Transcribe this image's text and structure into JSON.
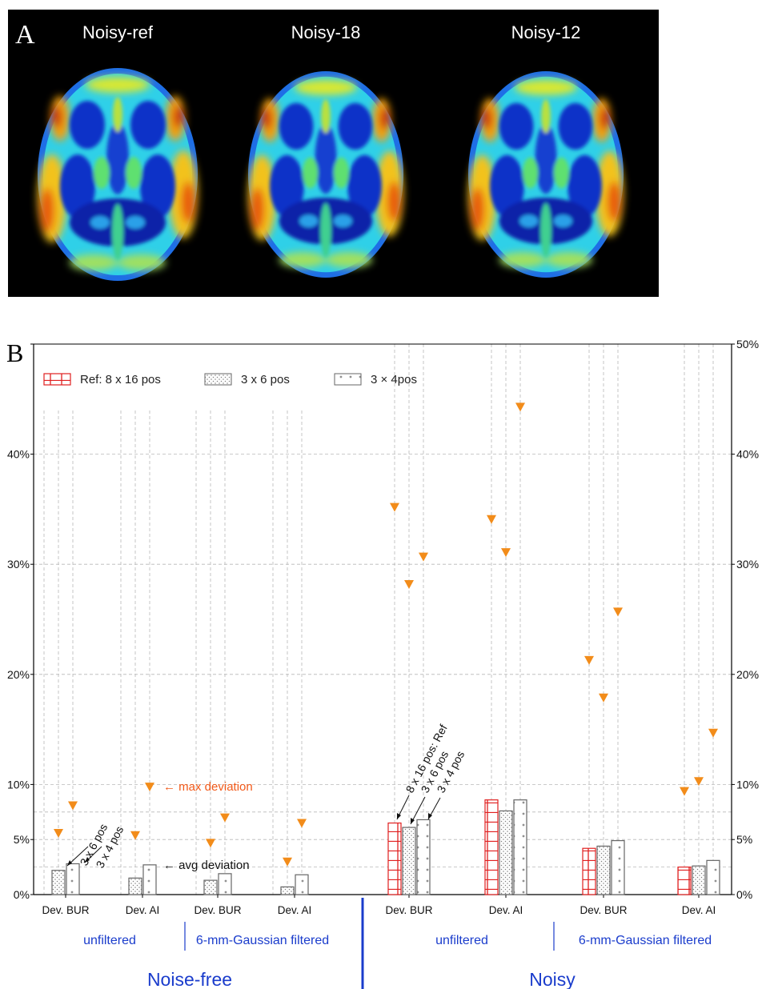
{
  "panel_a": {
    "letter": "A",
    "images": [
      {
        "title": "Noisy-ref"
      },
      {
        "title": "Noisy-18"
      },
      {
        "title": "Noisy-12"
      }
    ]
  },
  "panel_b": {
    "letter": "B",
    "legend": {
      "ref": "Ref: 8 x 16 pos",
      "s36": "3 x 6 pos",
      "s34": "3 × 4pos"
    },
    "annotations": {
      "max_deviation": "← max deviation",
      "avg_deviation": "← avg deviation",
      "nf_36": "3 x 6 pos",
      "nf_34": "3 x 4 pos",
      "n_ref": "8 x 16 pos: Ref",
      "n_36": "3 x 6 pos",
      "n_34": "3 x 4 pos"
    },
    "groups": {
      "nf_unfiltered": "unfiltered",
      "nf_filtered": "6-mm-Gaussian filtered",
      "n_unfiltered": "unfiltered",
      "n_filtered": "6-mm-Gaussian filtered",
      "noise_free": "Noise-free",
      "noisy": "Noisy"
    },
    "colors": {
      "marker": "#f28c1a",
      "ref_bar": "#e02020",
      "group_text": "#1a3ccc",
      "annotation_max": "#f25a1a"
    }
  },
  "chart_data": {
    "type": "bar",
    "ylim": [
      0,
      50
    ],
    "y_ticks": [
      "0%",
      "5%",
      "10%",
      "20%",
      "30%",
      "40%",
      "50%"
    ],
    "y_tick_values": [
      0,
      5,
      10,
      20,
      30,
      40,
      50
    ],
    "grid": true,
    "legend_position": "top-left",
    "categories": [
      "Dev. BUR",
      "Dev. AI",
      "Dev. BUR",
      "Dev. AI",
      "Dev. BUR",
      "Dev. AI",
      "Dev. BUR",
      "Dev. AI"
    ],
    "series": [
      {
        "name": "Ref: 8 x 16 pos",
        "avg": [
          null,
          null,
          null,
          null,
          6.5,
          8.6,
          4.2,
          2.5
        ],
        "max": [
          null,
          null,
          null,
          null,
          35.2,
          34.1,
          21.3,
          9.4
        ]
      },
      {
        "name": "3 x 6 pos",
        "avg": [
          2.2,
          1.5,
          1.3,
          0.7,
          6.1,
          7.6,
          4.4,
          2.6
        ],
        "max": [
          5.6,
          5.4,
          4.7,
          3.0,
          28.2,
          31.1,
          17.9,
          10.3
        ]
      },
      {
        "name": "3 × 4pos",
        "avg": [
          2.8,
          2.7,
          1.9,
          1.8,
          6.8,
          8.6,
          4.9,
          3.1
        ],
        "max": [
          8.1,
          9.8,
          7.0,
          6.5,
          30.7,
          44.3,
          25.7,
          14.7
        ]
      }
    ]
  }
}
